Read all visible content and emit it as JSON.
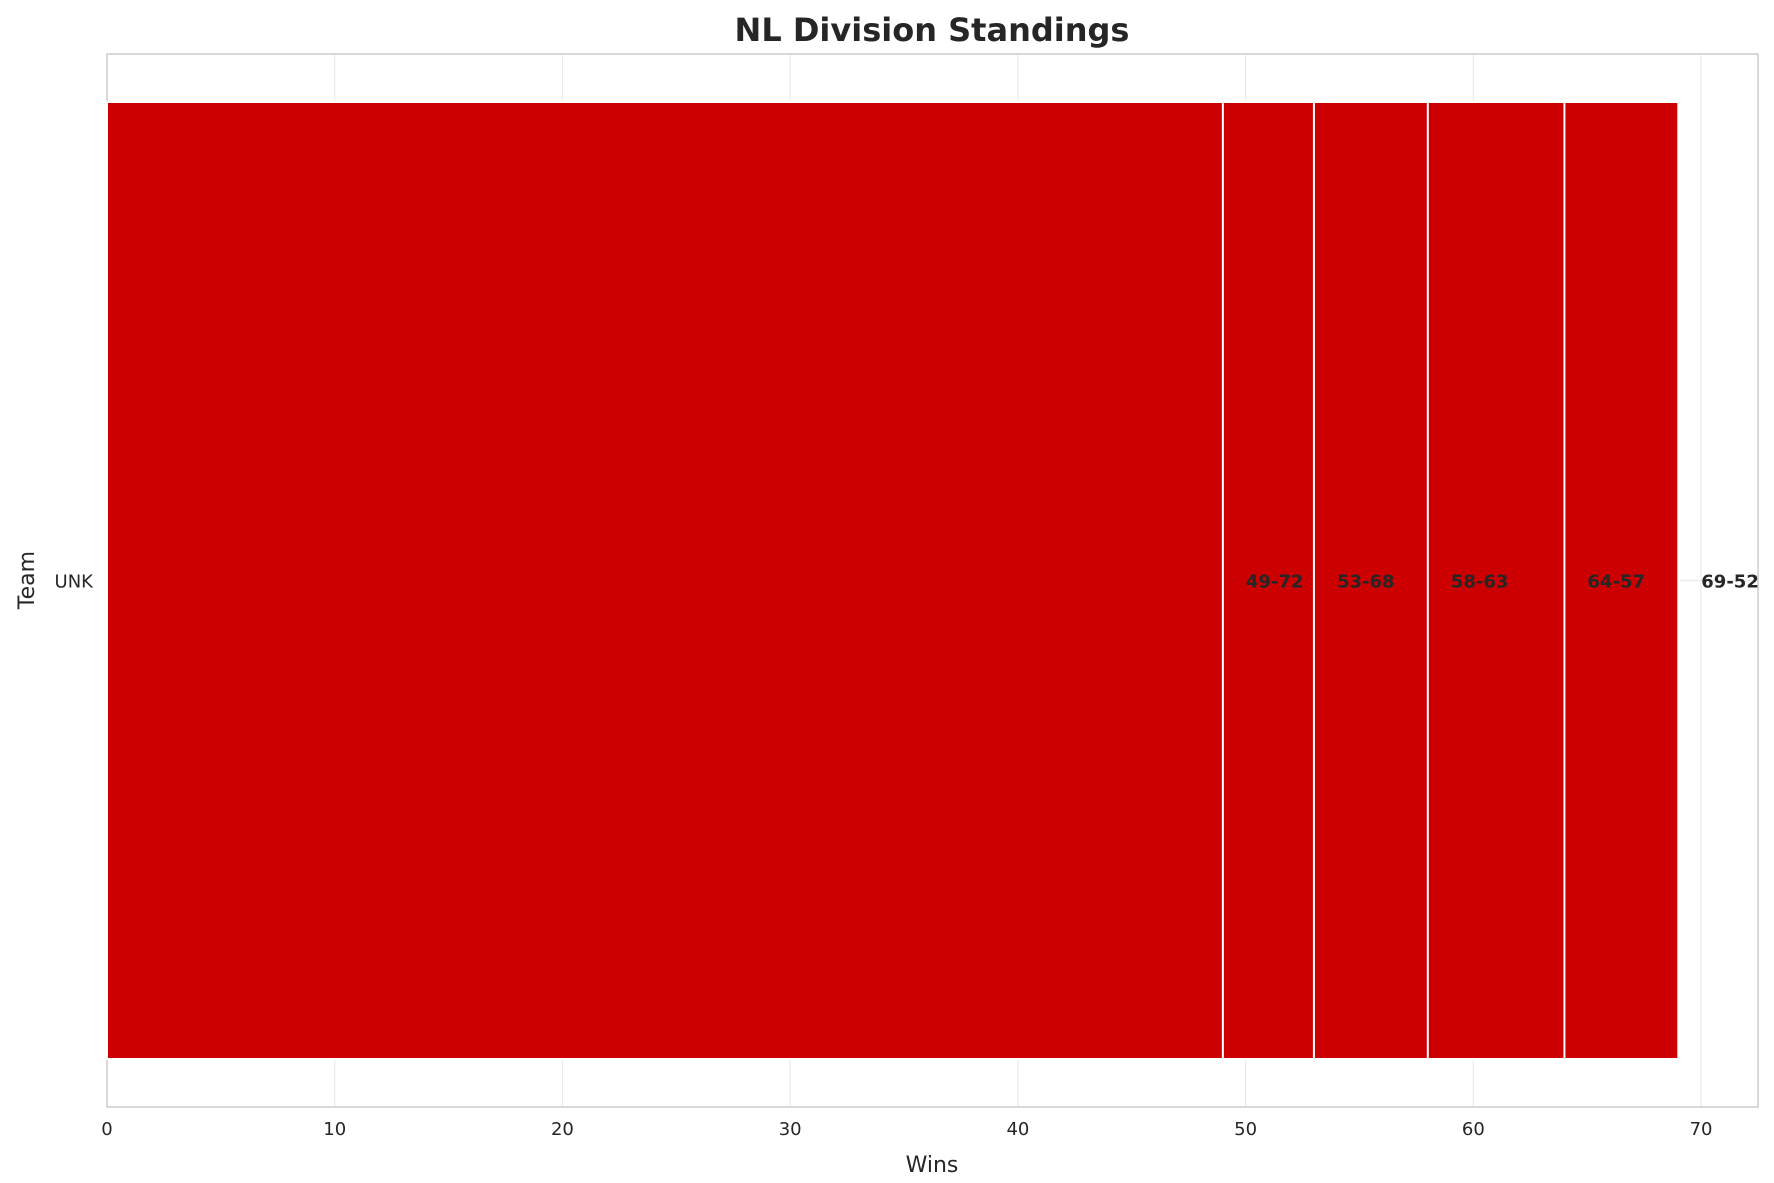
{
  "chart_data": {
    "type": "bar",
    "orientation": "horizontal",
    "title": "NL Division Standings",
    "xlabel": "Wins",
    "ylabel": "Team",
    "categories": [
      "UNK"
    ],
    "xlim": [
      0,
      72.5
    ],
    "x_ticks": [
      "0",
      "10",
      "20",
      "30",
      "40",
      "50",
      "60",
      "70"
    ],
    "grid": true,
    "bar_color": "#cc0000",
    "segments": [
      {
        "team": "UNK",
        "wins": 69,
        "losses": 52,
        "label": "69-52"
      },
      {
        "team": "UNK",
        "wins": 64,
        "losses": 57,
        "label": "64-57"
      },
      {
        "team": "UNK",
        "wins": 58,
        "losses": 63,
        "label": "58-63"
      },
      {
        "team": "UNK",
        "wins": 53,
        "losses": 68,
        "label": "53-68"
      },
      {
        "team": "UNK",
        "wins": 49,
        "losses": 72,
        "label": "49-72"
      }
    ]
  }
}
